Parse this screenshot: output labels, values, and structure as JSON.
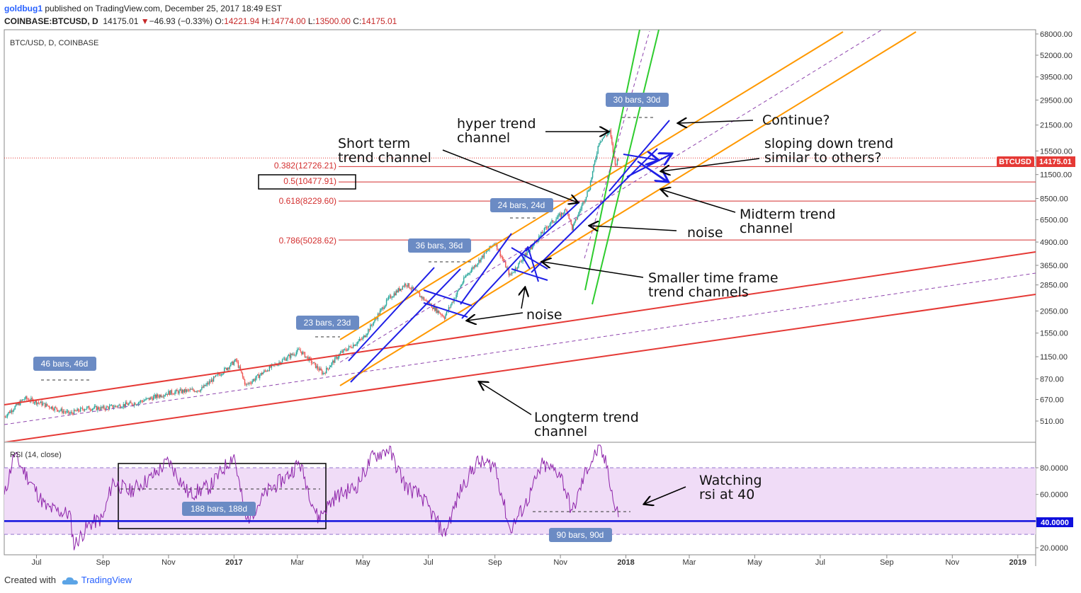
{
  "header": {
    "user": "goldbug1",
    "published": "published on TradingView.com, December 25, 2017 18:49 EST",
    "symbol": "COINBASE:BTCUSD, D",
    "last": "14175.01",
    "change": "−46.93 (−0.33%)",
    "o_label": "O:",
    "o": "14221.94",
    "h_label": "H:",
    "h": "14774.00",
    "l_label": "L:",
    "l": "13500.00",
    "c_label": "C:",
    "c": "14175.01"
  },
  "pane_title": "BTC/USD, D, COINBASE",
  "rsi_title": "RSI (14, close)",
  "footer": {
    "created_with": "Created with",
    "brand": "TradingView"
  },
  "colors": {
    "long_channel": "#e53935",
    "mid_channel": "#ff9800",
    "short_channel": "#1e1ee6",
    "hyper_channel": "#2ecc2e",
    "rsi_line": "#8e24aa",
    "rsi_band": "#f0dcf7",
    "fib_lines": "#d32f2f",
    "pill": "#6b8bc4",
    "price_tag": "#e53935",
    "rsi_level_line": "#1010dd"
  },
  "icons": {
    "tradingview_logo": "cloud-logo-icon"
  },
  "chart_data": {
    "type": "line",
    "x_axis": {
      "ticks": [
        "Jul",
        "Sep",
        "Nov",
        "2017",
        "Mar",
        "May",
        "Jul",
        "Sep",
        "Nov",
        "2018",
        "Mar",
        "May",
        "Jul",
        "Sep",
        "Nov",
        "2019"
      ],
      "range": [
        "2016-06-01",
        "2019-01-15"
      ]
    },
    "price_axis": {
      "scale": "log",
      "ticks": [
        "68000.00",
        "52000.00",
        "39500.00",
        "29500.00",
        "21500.00",
        "15500.00",
        "11500.00",
        "8500.00",
        "6500.00",
        "4900.00",
        "3650.00",
        "2850.00",
        "2050.00",
        "1550.00",
        "1150.00",
        "870.00",
        "670.00",
        "510.00"
      ]
    },
    "price_tag": {
      "symbol": "BTCUSD",
      "value": "14175.01"
    },
    "fib_levels": [
      {
        "label": "0.382(12726.21)",
        "value": 12726.21
      },
      {
        "label": "0.5(10477.91)",
        "value": 10477.91
      },
      {
        "label": "0.618(8229.60)",
        "value": 8229.6
      },
      {
        "label": "0.786(5028.62)",
        "value": 5028.62
      }
    ],
    "price_series": [
      [
        "2016-06-01",
        540
      ],
      [
        "2016-06-20",
        680
      ],
      [
        "2016-07-01",
        650
      ],
      [
        "2016-08-01",
        560
      ],
      [
        "2016-08-15",
        600
      ],
      [
        "2016-09-01",
        600
      ],
      [
        "2016-10-01",
        640
      ],
      [
        "2016-11-01",
        730
      ],
      [
        "2016-12-01",
        760
      ],
      [
        "2017-01-03",
        1100
      ],
      [
        "2017-01-12",
        800
      ],
      [
        "2017-02-01",
        980
      ],
      [
        "2017-03-03",
        1250
      ],
      [
        "2017-03-25",
        930
      ],
      [
        "2017-04-10",
        1200
      ],
      [
        "2017-05-01",
        1450
      ],
      [
        "2017-05-25",
        2400
      ],
      [
        "2017-06-10",
        2900
      ],
      [
        "2017-07-16",
        1900
      ],
      [
        "2017-08-05",
        3200
      ],
      [
        "2017-09-01",
        4900
      ],
      [
        "2017-09-15",
        3200
      ],
      [
        "2017-10-01",
        4300
      ],
      [
        "2017-10-20",
        6000
      ],
      [
        "2017-11-07",
        7400
      ],
      [
        "2017-11-12",
        5800
      ],
      [
        "2017-11-28",
        9800
      ],
      [
        "2017-12-07",
        17500
      ],
      [
        "2017-12-17",
        19800
      ],
      [
        "2017-12-22",
        13000
      ],
      [
        "2017-12-25",
        14175
      ]
    ],
    "rsi": {
      "levels": {
        "upper": 80,
        "lower": 30,
        "watch": 40
      },
      "ticks": [
        "80.0000",
        "60.0000",
        "40.0000",
        "20.0000"
      ],
      "watch_label": "40.0000",
      "series": [
        [
          "2016-06-01",
          58
        ],
        [
          "2016-06-10",
          90
        ],
        [
          "2016-06-25",
          70
        ],
        [
          "2016-07-10",
          50
        ],
        [
          "2016-08-01",
          45
        ],
        [
          "2016-08-05",
          22
        ],
        [
          "2016-08-20",
          38
        ],
        [
          "2016-09-01",
          42
        ],
        [
          "2016-09-10",
          70
        ],
        [
          "2016-09-25",
          62
        ],
        [
          "2016-10-15",
          72
        ],
        [
          "2016-11-01",
          85
        ],
        [
          "2016-11-20",
          60
        ],
        [
          "2016-12-10",
          66
        ],
        [
          "2017-01-01",
          90
        ],
        [
          "2017-01-12",
          40
        ],
        [
          "2017-02-01",
          62
        ],
        [
          "2017-02-20",
          74
        ],
        [
          "2017-03-03",
          84
        ],
        [
          "2017-03-20",
          42
        ],
        [
          "2017-04-05",
          58
        ],
        [
          "2017-04-25",
          66
        ],
        [
          "2017-05-10",
          88
        ],
        [
          "2017-05-25",
          94
        ],
        [
          "2017-06-10",
          66
        ],
        [
          "2017-06-25",
          58
        ],
        [
          "2017-07-16",
          30
        ],
        [
          "2017-08-01",
          65
        ],
        [
          "2017-08-15",
          84
        ],
        [
          "2017-09-01",
          82
        ],
        [
          "2017-09-15",
          33
        ],
        [
          "2017-10-01",
          55
        ],
        [
          "2017-10-15",
          82
        ],
        [
          "2017-11-01",
          76
        ],
        [
          "2017-11-12",
          46
        ],
        [
          "2017-11-25",
          78
        ],
        [
          "2017-12-07",
          95
        ],
        [
          "2017-12-15",
          80
        ],
        [
          "2017-12-22",
          48
        ],
        [
          "2017-12-25",
          46
        ]
      ]
    },
    "channels": [
      {
        "name": "Longterm trend channel",
        "color": "long_channel"
      },
      {
        "name": "Midterm trend channel",
        "color": "mid_channel"
      },
      {
        "name": "Short term trend channel",
        "color": "short_channel"
      },
      {
        "name": "hyper trend channel",
        "color": "hyper_channel"
      }
    ],
    "bar_counts": [
      "46 bars, 46d",
      "23 bars, 23d",
      "36 bars, 36d",
      "24 bars, 24d",
      "30 bars, 30d",
      "188 bars, 188d",
      "90 bars, 90d"
    ],
    "annotations": {
      "hyper_1": "hyper trend",
      "hyper_2": "channel",
      "short_1": "Short term",
      "short_2": "trend channel",
      "continue": "Continue?",
      "sloping_1": "sloping down trend",
      "sloping_2": "similar to others?",
      "mid_1": "Midterm trend",
      "mid_2": "channel",
      "noise_1": "noise",
      "noise_2": "noise",
      "smaller_1": "Smaller time frame",
      "smaller_2": "trend channels",
      "long_1": "Longterm trend",
      "long_2": "channel",
      "rsi_1": "Watching",
      "rsi_2": "rsi at 40"
    }
  }
}
